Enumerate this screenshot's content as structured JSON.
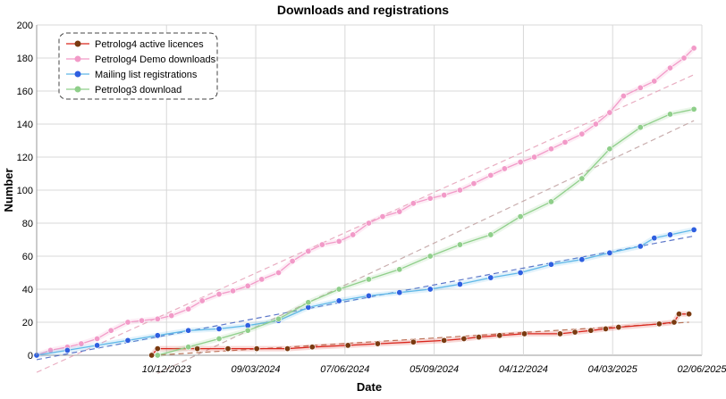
{
  "chart_data": {
    "type": "line",
    "title": "Downloads and registrations",
    "xlabel": "Date",
    "ylabel": "Number",
    "ylim": [
      0,
      200
    ],
    "yticks": [
      0,
      20,
      40,
      60,
      80,
      100,
      120,
      140,
      160,
      180,
      200
    ],
    "xlim": [
      "2023-08-01",
      "2025-06-02"
    ],
    "xticks": [
      "10/12/2023",
      "09/03/2024",
      "07/06/2024",
      "05/09/2024",
      "04/12/2024",
      "04/03/2025",
      "02/06/2025"
    ],
    "grid": true,
    "legend_position": "top-left",
    "series": [
      {
        "name": "Petrolog4 active licences",
        "color": "#d9261c",
        "marker_color": "#7a3a10",
        "trend_color": "#b06040",
        "x": [
          "2023-11-25",
          "2023-12-01",
          "2024-01-10",
          "2024-02-10",
          "2024-03-10",
          "2024-04-10",
          "2024-05-05",
          "2024-06-10",
          "2024-07-10",
          "2024-08-15",
          "2024-09-15",
          "2024-10-05",
          "2024-10-20",
          "2024-11-10",
          "2024-12-05",
          "2025-01-10",
          "2025-01-25",
          "2025-02-10",
          "2025-02-25",
          "2025-03-10",
          "2025-04-20",
          "2025-05-05",
          "2025-05-10",
          "2025-05-20"
        ],
        "y": [
          0,
          4,
          4,
          4,
          4,
          4,
          5,
          6,
          7,
          8,
          9,
          10,
          11,
          12,
          13,
          13,
          14,
          15,
          16,
          17,
          19,
          20,
          25,
          25
        ]
      },
      {
        "name": "Petrolog4 Demo downloads",
        "color": "#f29ac8",
        "marker_color": "#f29ac8",
        "trend_color": "#e6a0b8",
        "x": [
          "2023-08-01",
          "2023-08-15",
          "2023-09-01",
          "2023-09-15",
          "2023-10-01",
          "2023-10-15",
          "2023-11-01",
          "2023-11-15",
          "2023-12-01",
          "2023-12-15",
          "2024-01-01",
          "2024-01-15",
          "2024-02-01",
          "2024-02-15",
          "2024-03-01",
          "2024-03-15",
          "2024-04-01",
          "2024-04-15",
          "2024-05-01",
          "2024-05-15",
          "2024-06-01",
          "2024-06-15",
          "2024-07-01",
          "2024-07-15",
          "2024-08-01",
          "2024-08-15",
          "2024-09-01",
          "2024-09-15",
          "2024-10-01",
          "2024-10-15",
          "2024-11-01",
          "2024-11-15",
          "2024-12-01",
          "2024-12-15",
          "2025-01-01",
          "2025-01-15",
          "2025-02-01",
          "2025-02-15",
          "2025-03-01",
          "2025-03-15",
          "2025-04-01",
          "2025-04-15",
          "2025-05-01",
          "2025-05-15",
          "2025-05-25"
        ],
        "y": [
          0,
          3,
          5,
          7,
          10,
          15,
          20,
          21,
          22,
          24,
          28,
          33,
          37,
          39,
          42,
          46,
          50,
          57,
          63,
          67,
          69,
          73,
          80,
          84,
          87,
          92,
          95,
          97,
          100,
          104,
          109,
          113,
          117,
          120,
          125,
          129,
          134,
          140,
          147,
          157,
          162,
          166,
          174,
          180,
          186
        ]
      },
      {
        "name": "Mailing list registrations",
        "color": "#5fb8e8",
        "marker_color": "#2e5fe0",
        "trend_color": "#4060c0",
        "x": [
          "2023-08-01",
          "2023-09-01",
          "2023-10-01",
          "2023-11-01",
          "2023-12-01",
          "2024-01-01",
          "2024-02-01",
          "2024-03-01",
          "2024-04-01",
          "2024-05-01",
          "2024-06-01",
          "2024-07-01",
          "2024-08-01",
          "2024-09-01",
          "2024-10-01",
          "2024-11-01",
          "2024-12-01",
          "2025-01-01",
          "2025-02-01",
          "2025-03-01",
          "2025-04-01",
          "2025-04-15",
          "2025-05-01",
          "2025-05-25"
        ],
        "y": [
          0,
          3,
          6,
          9,
          12,
          15,
          16,
          18,
          21,
          29,
          33,
          36,
          38,
          40,
          43,
          47,
          50,
          55,
          58,
          62,
          66,
          71,
          73,
          76
        ]
      },
      {
        "name": "Petrolog3 download",
        "color": "#8fcf8a",
        "marker_color": "#8fcf8a",
        "trend_color": "#c0a0a0",
        "x": [
          "2023-12-01",
          "2024-01-01",
          "2024-02-01",
          "2024-03-01",
          "2024-04-01",
          "2024-05-01",
          "2024-06-01",
          "2024-07-01",
          "2024-08-01",
          "2024-09-01",
          "2024-10-01",
          "2024-11-01",
          "2024-12-01",
          "2025-01-01",
          "2025-02-01",
          "2025-03-01",
          "2025-04-01",
          "2025-05-01",
          "2025-05-25"
        ],
        "y": [
          0,
          5,
          10,
          15,
          22,
          32,
          40,
          46,
          52,
          60,
          67,
          73,
          84,
          93,
          107,
          125,
          138,
          146,
          149
        ]
      }
    ]
  }
}
